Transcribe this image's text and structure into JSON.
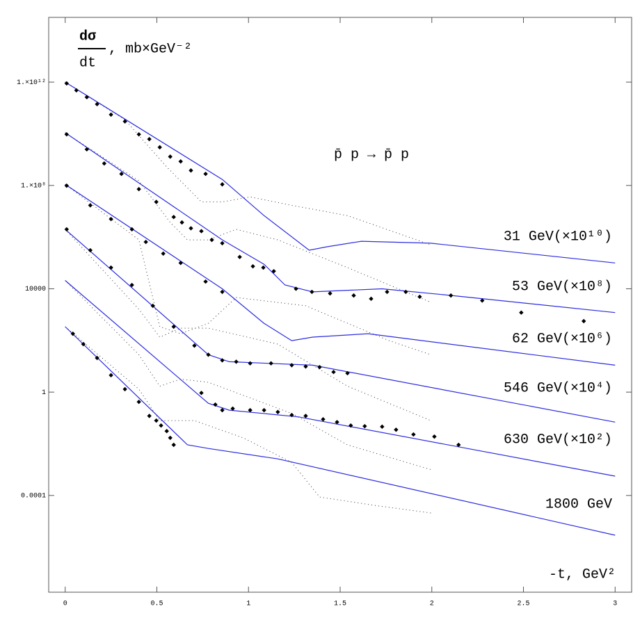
{
  "chart_data": {
    "type": "scatter",
    "log_y": true,
    "ylabel_numerator": "dσ",
    "ylabel_denominator": "dt",
    "ylabel_unit": ", mb×GeV⁻²",
    "xlabel": "-t, GeV²",
    "annotation": "p̄ p → p̄ p",
    "xlim": [
      -0.09,
      3.09
    ],
    "ylim": [
      1.8e-08,
      320000000000000.0
    ],
    "xticks": [
      0,
      0.5,
      1,
      1.5,
      2,
      2.5,
      3
    ],
    "yticks": [
      {
        "value": 1000000000000.0,
        "label": "1.×10¹²"
      },
      {
        "value": 100000000.0,
        "label": "1.×10⁸"
      },
      10000,
      1,
      0.0001
    ],
    "fit_color": "#2b2be0",
    "alt_color": "#333333",
    "series": [
      {
        "name": "31 GeV(×10¹⁰)",
        "color": "#000000",
        "x": [
          0.008,
          0.061,
          0.118,
          0.174,
          0.25,
          0.326,
          0.402,
          0.459,
          0.516,
          0.573,
          0.63,
          0.686,
          0.766,
          0.857
        ],
        "values": [
          890000000000.0,
          480000000000.0,
          260000000000.0,
          140000000000.0,
          55000000000.0,
          30000000000.0,
          9500000000.0,
          6200000000.0,
          3000000000.0,
          1300000000.0,
          850000000.0,
          380000000.0,
          280000000.0,
          110000000.0
        ],
        "fit_x": [
          0,
          0.857,
          1.085,
          1.331,
          1.426,
          1.616,
          1.995,
          3
        ],
        "fit_values": [
          1000000000000.0,
          170000000.0,
          6800000.0,
          310000.0,
          420000.0,
          690000.0,
          580000.0,
          100000.0
        ],
        "alt_x": [
          0,
          0.326,
          0.554,
          0.743,
          0.857,
          1.009,
          1.236,
          1.54,
          1.995
        ],
        "alt_values": [
          1000000000000.0,
          35000000000.0,
          520000000.0,
          23000000.0,
          23000000.0,
          36000000.0,
          17000000.0,
          6800000.0,
          500000.0
        ]
      },
      {
        "name": "53 GeV(×10⁸)",
        "color": "#000000",
        "x": [
          0.008,
          0.118,
          0.213,
          0.307,
          0.402,
          0.497,
          0.592,
          0.637,
          0.686,
          0.743,
          0.8,
          0.857,
          0.952,
          1.024,
          1.081,
          1.138,
          1.259,
          1.346,
          1.445,
          1.574,
          1.669,
          1.756,
          1.858,
          1.934,
          2.104,
          2.275,
          2.488,
          2.829
        ],
        "values": [
          9500000000.0,
          2500000000.0,
          710000000.0,
          280000000.0,
          72000000.0,
          23000000.0,
          6000000.0,
          3700000.0,
          2200000.0,
          1700000.0,
          780000.0,
          580000.0,
          170000.0,
          74000.0,
          66000.0,
          48000.0,
          10000.0,
          7600.0,
          6600.0,
          5500.0,
          4100.0,
          7600.0,
          7600.0,
          4900.0,
          5500.0,
          3500.0,
          1200.0,
          560.0
        ],
        "fit_x": [
          0,
          0.857,
          1.085,
          1.199,
          1.35,
          1.729,
          2.108,
          3
        ],
        "fit_values": [
          11000000000.0,
          780000.0,
          89000.0,
          14000.0,
          7600.0,
          10000.0,
          5500.0,
          1200.0
        ],
        "alt_x": [
          0,
          0.402,
          0.573,
          0.667,
          0.781,
          0.933,
          1.16,
          1.54,
          1.995
        ],
        "alt_values": [
          11000000000.0,
          150000000.0,
          3700000.0,
          780000.0,
          780000.0,
          2000000.0,
          780000.0,
          66000.0,
          3000.0
        ]
      },
      {
        "name": "62 GeV(×10⁶)",
        "color": "#000000",
        "x": [
          0.008,
          0.137,
          0.25,
          0.364,
          0.44,
          0.535,
          0.63,
          0.766,
          0.857
        ],
        "values": [
          98000000.0,
          17000000.0,
          5000000.0,
          2000000.0,
          650000.0,
          230000.0,
          100000.0,
          19000.0,
          7600.0
        ],
        "fit_x": [
          0,
          0.857,
          1.085,
          1.236,
          1.35,
          1.653,
          3
        ],
        "fit_values": [
          110000000.0,
          10000.0,
          460.0,
          98,
          135,
          182,
          11
        ],
        "alt_x": [
          0,
          0.402,
          0.516,
          0.63,
          0.781,
          0.933,
          1.312,
          1.767,
          1.995
        ],
        "alt_values": [
          110000000.0,
          780000.0,
          340,
          182,
          460,
          4600.0,
          2200.0,
          98,
          28
        ]
      },
      {
        "name": "546 GeV(×10⁴)",
        "color": "#000000",
        "x": [
          0.008,
          0.137,
          0.25,
          0.364,
          0.478,
          0.592,
          0.705,
          0.781,
          0.857,
          0.933,
          1.009,
          1.123,
          1.236,
          1.312,
          1.388,
          1.464,
          1.54
        ],
        "values": [
          2000000.0,
          310000.0,
          66000.0,
          14000.0,
          2200.0,
          340,
          63,
          28,
          17,
          15,
          13,
          13,
          11,
          9.8,
          9.3,
          6.0,
          5.4
        ],
        "fit_x": [
          0,
          0.781,
          0.895,
          1.35,
          3
        ],
        "fit_values": [
          2000000.0,
          28,
          15,
          11,
          0.069
        ],
        "alt_x": [
          0,
          0.402,
          0.516,
          0.63,
          0.781,
          1.16,
          1.54,
          1.995
        ],
        "alt_values": [
          2000000.0,
          1600.0,
          135,
          300,
          300,
          72,
          1.7,
          0.079
        ]
      },
      {
        "name": "630 GeV(×10²)",
        "color": "#000000",
        "x": [
          0.743,
          0.819,
          0.857,
          0.914,
          1.009,
          1.085,
          1.16,
          1.236,
          1.312,
          1.407,
          1.483,
          1.558,
          1.634,
          1.729,
          1.805,
          1.9,
          2.014,
          2.146
        ],
        "values": [
          0.93,
          0.33,
          0.2,
          0.23,
          0.2,
          0.2,
          0.17,
          0.13,
          0.12,
          0.089,
          0.069,
          0.051,
          0.048,
          0.046,
          0.035,
          0.023,
          0.019,
          0.0091
        ],
        "fit_x": [
          0,
          0.781,
          0.895,
          1.274,
          3
        ],
        "fit_values": [
          21000.0,
          0.37,
          0.2,
          0.11,
          0.00056
        ],
        "alt_x": [
          0,
          0.402,
          0.516,
          0.63,
          0.781,
          1.236,
          1.54,
          1.995
        ],
        "alt_values": [
          21000.0,
          28,
          1.7,
          3.2,
          2.4,
          0.15,
          0.0091,
          0.001
        ]
      },
      {
        "name": "1800 GeV",
        "color": "#000000",
        "x": [
          0.042,
          0.099,
          0.174,
          0.25,
          0.326,
          0.402,
          0.459,
          0.497,
          0.523,
          0.554,
          0.573,
          0.592
        ],
        "values": [
          182,
          72,
          21,
          4.5,
          1.3,
          0.42,
          0.12,
          0.079,
          0.051,
          0.031,
          0.017,
          0.0091
        ],
        "fit_x": [
          0,
          0.667,
          0.781,
          1.16,
          3
        ],
        "fit_values": [
          340,
          0.0091,
          0.0066,
          0.0026,
          2.9e-06
        ],
        "alt_x": [
          0,
          0.402,
          0.516,
          0.705,
          0.971,
          1.236,
          1.388,
          1.691,
          1.995
        ],
        "alt_values": [
          340,
          1.3,
          0.079,
          0.079,
          0.017,
          0.0019,
          8.7e-05,
          4.1e-05,
          2.1e-05
        ]
      }
    ]
  }
}
